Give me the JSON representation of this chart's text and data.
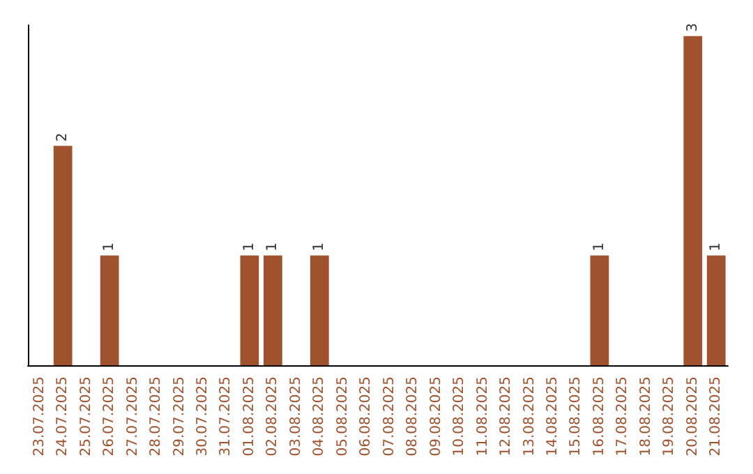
{
  "chart_data": {
    "type": "bar",
    "categories": [
      "23.07.2025",
      "24.07.2025",
      "25.07.2025",
      "26.07.2025",
      "27.07.2025",
      "28.07.2025",
      "29.07.2025",
      "30.07.2025",
      "31.07.2025",
      "01.08.2025",
      "02.08.2025",
      "03.08.2025",
      "04.08.2025",
      "05.08.2025",
      "06.08.2025",
      "07.08.2025",
      "08.08.2025",
      "09.08.2025",
      "10.08.2025",
      "11.08.2025",
      "12.08.2025",
      "13.08.2025",
      "14.08.2025",
      "15.08.2025",
      "16.08.2025",
      "17.08.2025",
      "18.08.2025",
      "19.08.2025",
      "20.08.2025",
      "21.08.2025"
    ],
    "values": [
      0,
      2,
      0,
      1,
      0,
      0,
      0,
      0,
      0,
      1,
      1,
      0,
      1,
      0,
      0,
      0,
      0,
      0,
      0,
      0,
      0,
      0,
      0,
      0,
      1,
      0,
      0,
      0,
      3,
      1
    ],
    "value_labels": [
      null,
      "2",
      null,
      "1",
      null,
      null,
      null,
      null,
      null,
      "1",
      "1",
      null,
      "1",
      null,
      null,
      null,
      null,
      null,
      null,
      null,
      null,
      null,
      null,
      null,
      "1",
      null,
      null,
      null,
      "3",
      "1"
    ],
    "color": "#a0522d",
    "ylim": [
      0,
      3.1
    ],
    "tick_labels": "x"
  }
}
